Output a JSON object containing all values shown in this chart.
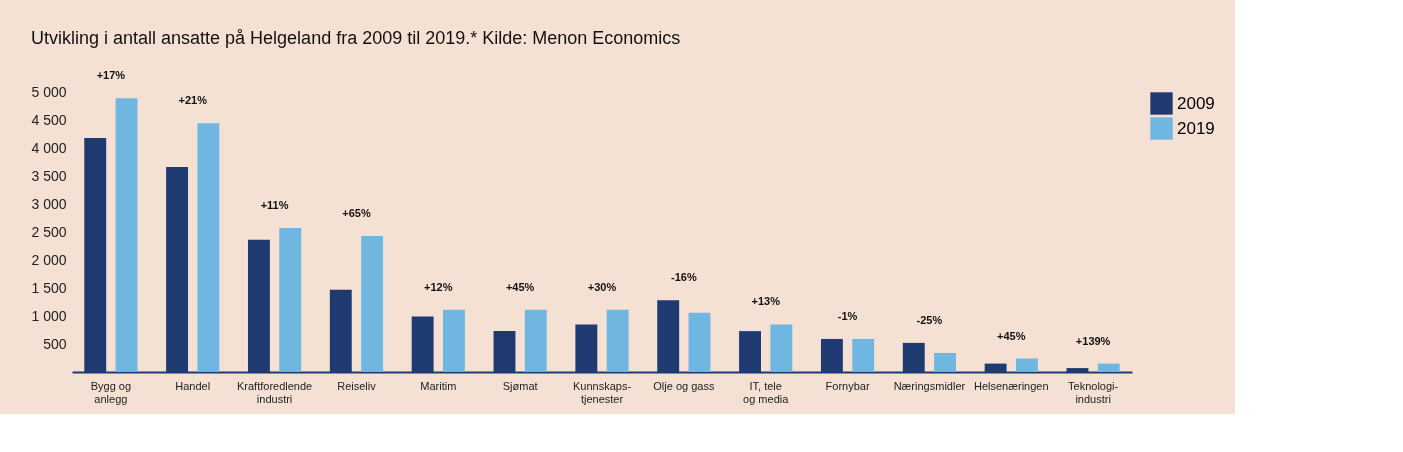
{
  "chart_data": {
    "type": "bar",
    "title": "Utvikling i antall ansatte på Helgeland fra 2009 til 2019.* Kilde: Menon Economics",
    "categories": [
      "Bygg og\nanlegg",
      "Handel",
      "Kraftforedlende\nindustri",
      "Reiseliv",
      "Maritim",
      "Sjømat",
      "Kunnskaps-\ntjenester",
      "Olje og gass",
      "IT, tele\nog media",
      "Fornybar",
      "Næringsmidler",
      "Helsenæringen",
      "Teknologi-\nindustri"
    ],
    "series": [
      {
        "name": "2009",
        "color": "#1f3a70",
        "values": [
          4180,
          3660,
          2360,
          1470,
          990,
          730,
          850,
          1280,
          730,
          590,
          520,
          150,
          70
        ]
      },
      {
        "name": "2019",
        "color": "#6fb7e0",
        "values": [
          4890,
          4440,
          2570,
          2430,
          1110,
          1110,
          1110,
          1060,
          850,
          590,
          340,
          240,
          150
        ]
      }
    ],
    "ylim": [
      0,
      5000
    ],
    "yticks": [
      {
        "value": 500,
        "label": "500"
      },
      {
        "value": 1000,
        "label": "1 000"
      },
      {
        "value": 1500,
        "label": "1 500"
      },
      {
        "value": 2000,
        "label": "2 000"
      },
      {
        "value": 2500,
        "label": "2 500"
      },
      {
        "value": 3000,
        "label": "3 000"
      },
      {
        "value": 3500,
        "label": "3 500"
      },
      {
        "value": 4000,
        "label": "4 000"
      },
      {
        "value": 4500,
        "label": "4 500"
      },
      {
        "value": 5000,
        "label": "5 000"
      }
    ],
    "grid": false,
    "legend": "right",
    "annotations": [
      "+17%",
      "+21%",
      "+11%",
      "+65%",
      "+12%",
      "+45%",
      "+30%",
      "-16%",
      "+13%",
      "-1%",
      "-25%",
      "+45%",
      "+139%"
    ]
  }
}
